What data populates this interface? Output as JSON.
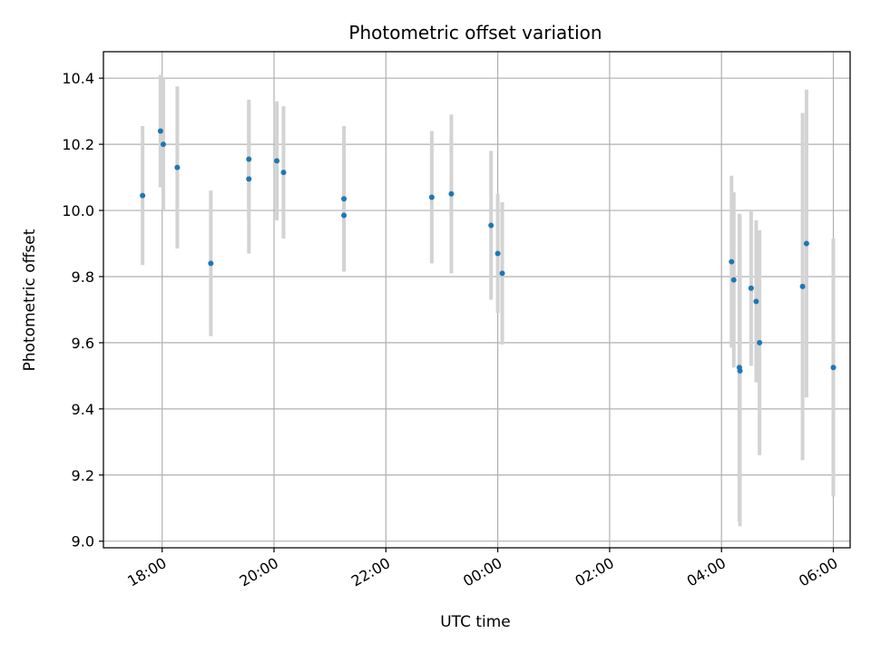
{
  "chart_data": {
    "type": "scatter",
    "title": "Photometric offset variation",
    "xlabel": "UTC time",
    "ylabel": "Photometric offset",
    "grid": true,
    "x_unit": "hours since 00:00 UTC",
    "xlim": [
      -7.05,
      6.3
    ],
    "ylim": [
      8.98,
      10.48
    ],
    "x_ticks": [
      {
        "value": -6,
        "label": "18:00"
      },
      {
        "value": -4,
        "label": "20:00"
      },
      {
        "value": -2,
        "label": "22:00"
      },
      {
        "value": 0,
        "label": "00:00"
      },
      {
        "value": 2,
        "label": "02:00"
      },
      {
        "value": 4,
        "label": "04:00"
      },
      {
        "value": 6,
        "label": "06:00"
      }
    ],
    "y_ticks": [
      {
        "value": 9.0,
        "label": "9.0"
      },
      {
        "value": 9.2,
        "label": "9.2"
      },
      {
        "value": 9.4,
        "label": "9.4"
      },
      {
        "value": 9.6,
        "label": "9.6"
      },
      {
        "value": 9.8,
        "label": "9.8"
      },
      {
        "value": 10.0,
        "label": "10.0"
      },
      {
        "value": 10.2,
        "label": "10.2"
      },
      {
        "value": 10.4,
        "label": "10.4"
      }
    ],
    "colors": {
      "point": "#1f77b4",
      "errorbar": "#d3d3d3",
      "grid": "#b0b0b0"
    },
    "series": [
      {
        "points": [
          {
            "x": -6.35,
            "y": 10.045,
            "err": 0.21
          },
          {
            "x": -6.03,
            "y": 10.24,
            "err": 0.17
          },
          {
            "x": -5.98,
            "y": 10.2,
            "err": 0.2
          },
          {
            "x": -5.73,
            "y": 10.13,
            "err": 0.245
          },
          {
            "x": -5.13,
            "y": 9.84,
            "err": 0.22
          },
          {
            "x": -4.45,
            "y": 10.155,
            "err": 0.18
          },
          {
            "x": -4.45,
            "y": 10.095,
            "err": 0.225
          },
          {
            "x": -3.95,
            "y": 10.15,
            "err": 0.18
          },
          {
            "x": -3.83,
            "y": 10.115,
            "err": 0.2
          },
          {
            "x": -2.75,
            "y": 10.035,
            "err": 0.22
          },
          {
            "x": -2.75,
            "y": 9.985,
            "err": 0.17
          },
          {
            "x": -1.18,
            "y": 10.04,
            "err": 0.2
          },
          {
            "x": -0.83,
            "y": 10.05,
            "err": 0.24
          },
          {
            "x": -0.12,
            "y": 9.955,
            "err": 0.225
          },
          {
            "x": 0.0,
            "y": 9.87,
            "err": 0.18
          },
          {
            "x": 0.08,
            "y": 9.81,
            "err": 0.215
          },
          {
            "x": 4.18,
            "y": 9.845,
            "err": 0.26
          },
          {
            "x": 4.22,
            "y": 9.79,
            "err": 0.265
          },
          {
            "x": 4.32,
            "y": 9.525,
            "err": 0.465
          },
          {
            "x": 4.33,
            "y": 9.515,
            "err": 0.47
          },
          {
            "x": 4.53,
            "y": 9.765,
            "err": 0.235
          },
          {
            "x": 4.62,
            "y": 9.725,
            "err": 0.245
          },
          {
            "x": 4.68,
            "y": 9.6,
            "err": 0.34
          },
          {
            "x": 5.45,
            "y": 9.77,
            "err": 0.525
          },
          {
            "x": 5.52,
            "y": 9.9,
            "err": 0.465
          },
          {
            "x": 6.0,
            "y": 9.525,
            "err": 0.39
          }
        ]
      }
    ]
  }
}
